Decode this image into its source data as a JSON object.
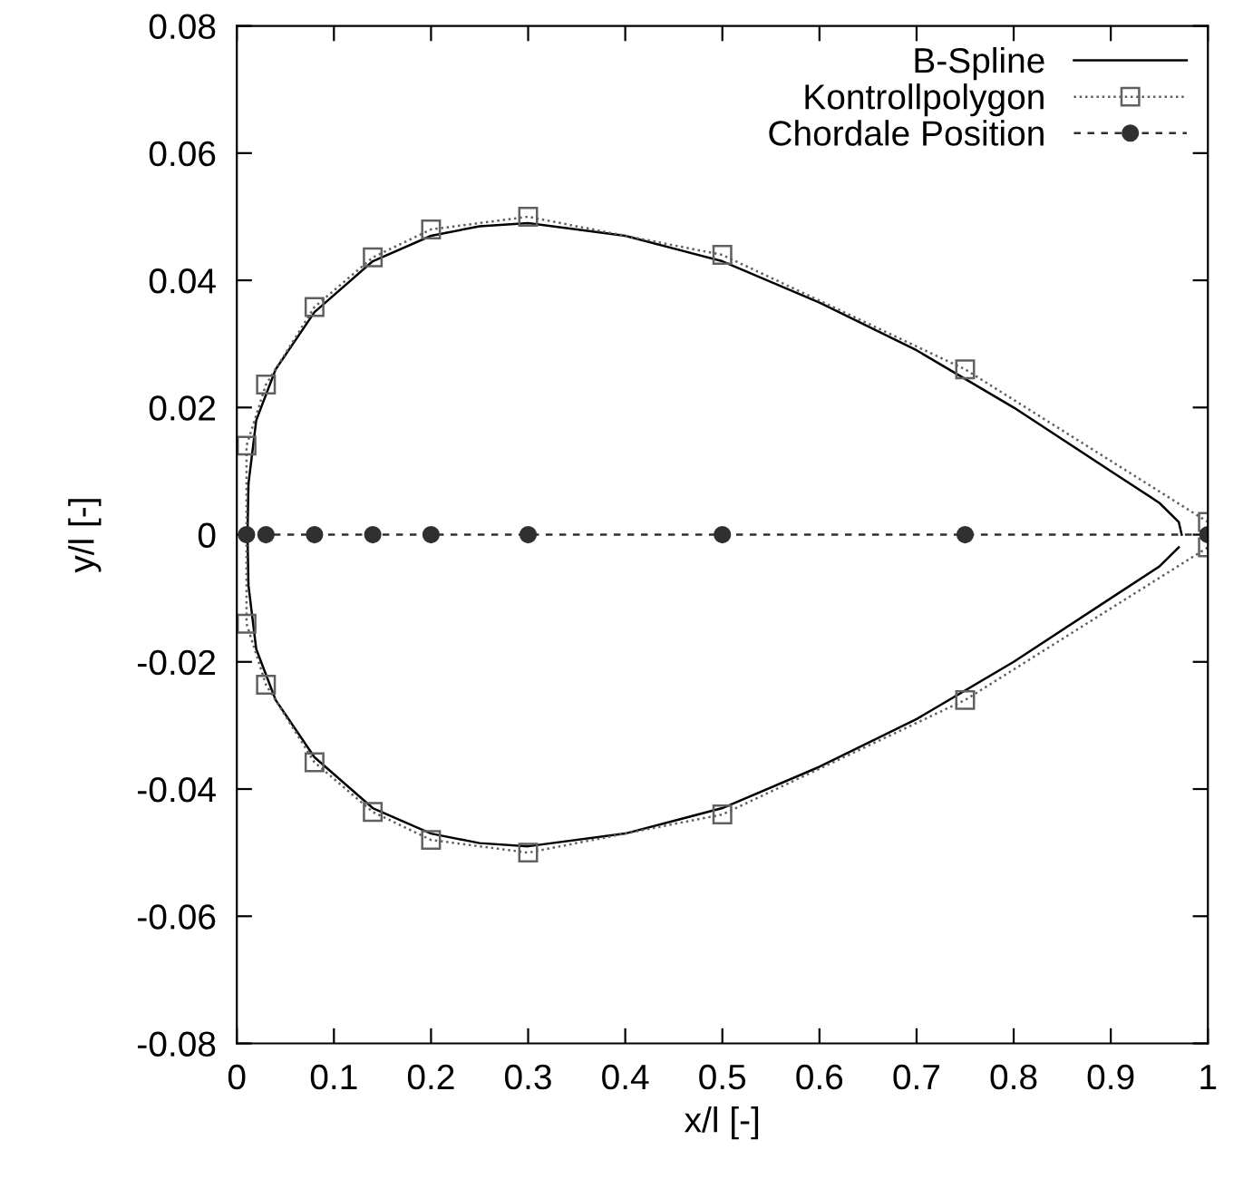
{
  "chart_data": {
    "type": "line",
    "xlabel": "x/l [-]",
    "ylabel": "y/l [-]",
    "xlim": [
      0,
      1
    ],
    "xticks": [
      0,
      0.1,
      0.2,
      0.3,
      0.4,
      0.5,
      0.6,
      0.7,
      0.8,
      0.9,
      1
    ],
    "ylim": [
      -0.08,
      0.08
    ],
    "yticks": [
      -0.08,
      -0.06,
      -0.04,
      -0.02,
      0,
      0.02,
      0.04,
      0.06,
      0.08
    ],
    "grid": false,
    "legend": "top right",
    "series": [
      {
        "name": "B-Spline",
        "color": "#000000",
        "line_style": "solid",
        "marker": "none",
        "x": [
          0.973,
          0.97,
          0.95,
          0.9,
          0.8,
          0.7,
          0.6,
          0.5,
          0.4,
          0.3,
          0.25,
          0.2,
          0.14,
          0.08,
          0.04,
          0.02,
          0.012,
          0.011,
          0.012,
          0.02,
          0.04,
          0.08,
          0.14,
          0.2,
          0.25,
          0.3,
          0.4,
          0.5,
          0.6,
          0.7,
          0.8,
          0.9,
          0.95,
          0.97
        ],
        "values": [
          0,
          0.002,
          0.005,
          0.01,
          0.02,
          0.029,
          0.0365,
          0.043,
          0.047,
          0.049,
          0.0485,
          0.047,
          0.043,
          0.035,
          0.026,
          0.018,
          0.008,
          0,
          -0.008,
          -0.018,
          -0.026,
          -0.035,
          -0.043,
          -0.047,
          -0.0485,
          -0.049,
          -0.047,
          -0.043,
          -0.0365,
          -0.029,
          -0.02,
          -0.01,
          -0.005,
          -0.002
        ]
      },
      {
        "name": "Kontrollpolygon",
        "color": "#606060",
        "line_style": "dotted",
        "marker": "square",
        "x": [
          1.0,
          0.75,
          0.5,
          0.3,
          0.2,
          0.14,
          0.08,
          0.03,
          0.01,
          0.01,
          0.03,
          0.08,
          0.14,
          0.2,
          0.3,
          0.5,
          0.75,
          1.0
        ],
        "values": [
          0.002,
          0.026,
          0.044,
          0.05,
          0.048,
          0.0436,
          0.0358,
          0.0236,
          0.014,
          -0.014,
          -0.0236,
          -0.0358,
          -0.0436,
          -0.048,
          -0.05,
          -0.044,
          -0.026,
          -0.002
        ]
      },
      {
        "name": "Chordale Position",
        "color": "#303030",
        "line_style": "dashed",
        "marker": "circle",
        "x": [
          0.01,
          0.03,
          0.08,
          0.14,
          0.2,
          0.3,
          0.5,
          0.75,
          1.0
        ],
        "values": [
          0,
          0,
          0,
          0,
          0,
          0,
          0,
          0,
          0
        ]
      }
    ]
  }
}
